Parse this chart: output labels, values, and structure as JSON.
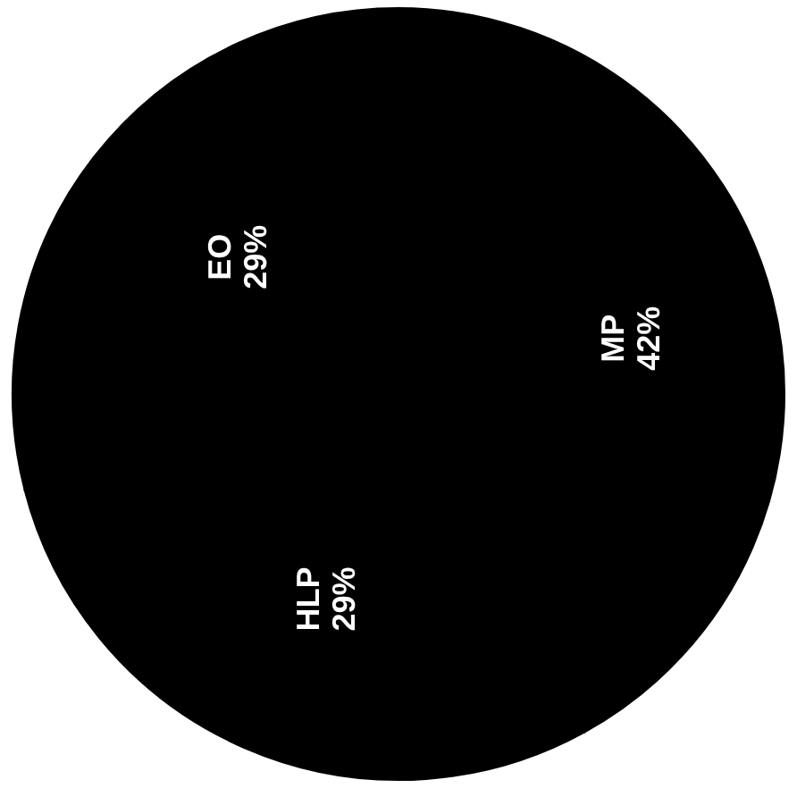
{
  "chart_data": {
    "type": "pie",
    "categories": [
      "MP",
      "HLP",
      "EO"
    ],
    "values": [
      42,
      29,
      29
    ],
    "colors": [
      "#000000",
      "#000000",
      "#000000"
    ],
    "value_labels": [
      "42%",
      "29%",
      "29%"
    ]
  }
}
